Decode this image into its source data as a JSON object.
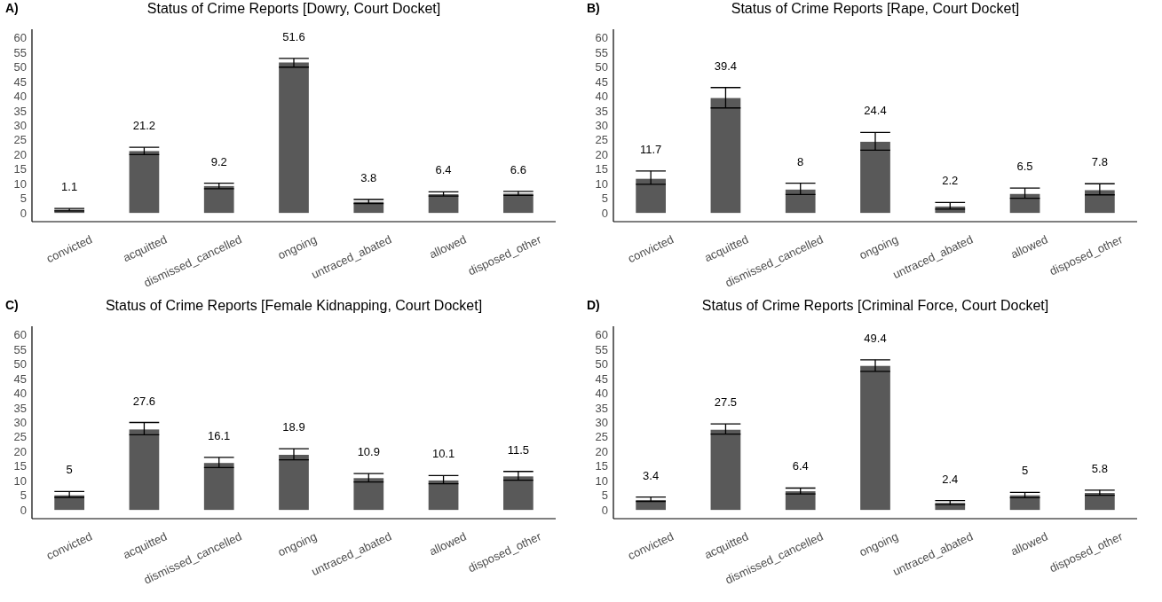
{
  "chart_data": [
    {
      "type": "bar",
      "title": "Status of Crime Reports [Dowry, Court Docket]",
      "subtitle": "A)",
      "categories": [
        "convicted",
        "acquitted",
        "dismissed_cancelled",
        "ongoing",
        "untraced_abated",
        "allowed",
        "disposed_other"
      ],
      "values": [
        1.1,
        21.2,
        9.2,
        51.6,
        3.8,
        6.4,
        6.6
      ],
      "errors": [
        [
          0.7,
          1.5
        ],
        [
          20,
          22.5
        ],
        [
          8.3,
          10.2
        ],
        [
          50,
          53
        ],
        [
          3.2,
          4.6
        ],
        [
          5.8,
          7.2
        ],
        [
          6,
          7.4
        ]
      ],
      "color": "#595959",
      "ylim": [
        -3,
        63
      ],
      "yticks": [
        0,
        5,
        10,
        15,
        20,
        25,
        30,
        35,
        40,
        45,
        50,
        55,
        60
      ],
      "data_labels": true
    },
    {
      "type": "bar",
      "title": "Status of Crime Reports [Rape, Court Docket]",
      "subtitle": "B)",
      "categories": [
        "convicted",
        "acquitted",
        "dismissed_cancelled",
        "ongoing",
        "untraced_abated",
        "allowed",
        "disposed_other"
      ],
      "values": [
        11.7,
        39.4,
        8,
        24.4,
        2.2,
        6.5,
        7.8
      ],
      "errors": [
        [
          9.8,
          14.4
        ],
        [
          36,
          43
        ],
        [
          6.3,
          10.2
        ],
        [
          21.5,
          27.6
        ],
        [
          1.3,
          3.6
        ],
        [
          5,
          8.5
        ],
        [
          6.2,
          10
        ]
      ],
      "color": "#595959",
      "ylim": [
        -3,
        63
      ],
      "yticks": [
        0,
        5,
        10,
        15,
        20,
        25,
        30,
        35,
        40,
        45,
        50,
        55,
        60
      ],
      "data_labels": true
    },
    {
      "type": "bar",
      "title": "Status of Crime Reports [Female Kidnapping, Court Docket]",
      "subtitle": "C)",
      "categories": [
        "convicted",
        "acquitted",
        "dismissed_cancelled",
        "ongoing",
        "untraced_abated",
        "allowed",
        "disposed_other"
      ],
      "values": [
        5,
        27.6,
        16.1,
        18.9,
        10.9,
        10.1,
        11.5
      ],
      "errors": [
        [
          4.3,
          6.3
        ],
        [
          25.8,
          30
        ],
        [
          14.5,
          18
        ],
        [
          17.2,
          21
        ],
        [
          9.6,
          12.5
        ],
        [
          9,
          11.8
        ],
        [
          10.2,
          13.2
        ]
      ],
      "color": "#595959",
      "ylim": [
        -3,
        63
      ],
      "yticks": [
        0,
        5,
        10,
        15,
        20,
        25,
        30,
        35,
        40,
        45,
        50,
        55,
        60
      ],
      "data_labels": true
    },
    {
      "type": "bar",
      "title": "Status of Crime Reports [Criminal Force, Court Docket]",
      "subtitle": "D)",
      "categories": [
        "convicted",
        "acquitted",
        "dismissed_cancelled",
        "ongoing",
        "untraced_abated",
        "allowed",
        "disposed_other"
      ],
      "values": [
        3.4,
        27.5,
        6.4,
        49.4,
        2.4,
        5,
        5.8
      ],
      "errors": [
        [
          2.9,
          4.4
        ],
        [
          26,
          29.5
        ],
        [
          5.5,
          7.5
        ],
        [
          47.5,
          51.5
        ],
        [
          1.8,
          3.2
        ],
        [
          4.2,
          6
        ],
        [
          5,
          6.8
        ]
      ],
      "color": "#595959",
      "ylim": [
        -3,
        63
      ],
      "yticks": [
        0,
        5,
        10,
        15,
        20,
        25,
        30,
        35,
        40,
        45,
        50,
        55,
        60
      ],
      "data_labels": true
    }
  ]
}
